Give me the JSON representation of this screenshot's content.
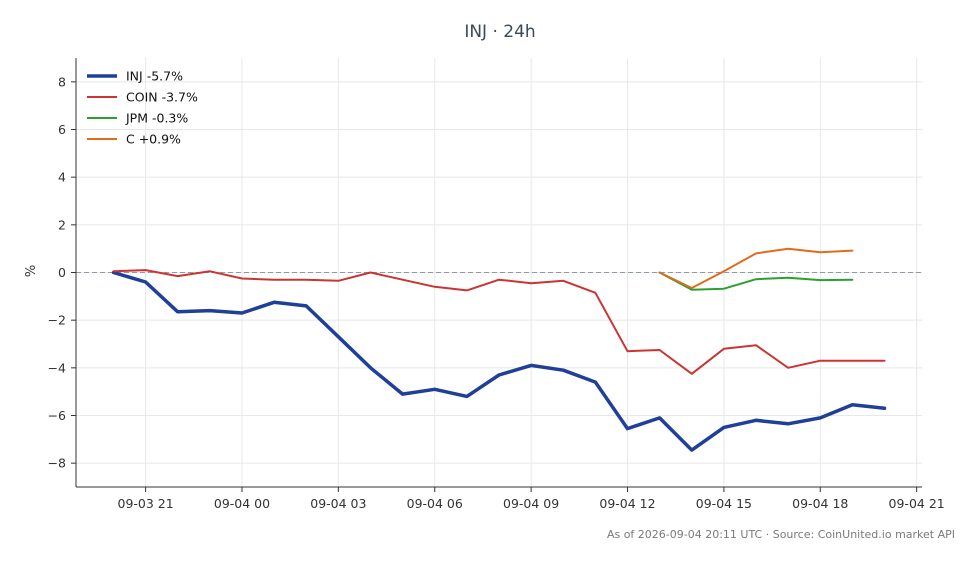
{
  "chart_data": {
    "type": "line",
    "title": "INJ · 24h",
    "xlabel": "",
    "ylabel": "%",
    "ylim": [
      -9,
      9
    ],
    "y_ticks": [
      -8,
      -6,
      -4,
      -2,
      0,
      2,
      4,
      6,
      8
    ],
    "y_tick_labels": [
      "−8",
      "−6",
      "−4",
      "−2",
      "0",
      "2",
      "4",
      "6",
      "8"
    ],
    "x_ticks": [
      "2026-09-03 21:00",
      "2026-09-04 00:00",
      "2026-09-04 03:00",
      "2026-09-04 06:00",
      "2026-09-04 09:00",
      "2026-09-04 12:00",
      "2026-09-04 15:00",
      "2026-09-04 18:00",
      "2026-09-04 21:00"
    ],
    "x_tick_labels": [
      "09-03 21",
      "09-04 00",
      "09-04 03",
      "09-04 06",
      "09-04 09",
      "09-04 12",
      "09-04 15",
      "09-04 18",
      "09-04 21"
    ],
    "xlim": [
      "2026-09-03 18:50",
      "2026-09-04 21:10"
    ],
    "grid": true,
    "zero_reference_line": true,
    "legend_position": "top-left",
    "series": [
      {
        "name": "INJ -5.7%",
        "color": "#1f3f99",
        "x": [
          "2026-09-03 20:00",
          "2026-09-03 21:00",
          "2026-09-03 22:00",
          "2026-09-03 23:00",
          "2026-09-04 00:00",
          "2026-09-04 01:00",
          "2026-09-04 02:00",
          "2026-09-04 03:00",
          "2026-09-04 04:00",
          "2026-09-04 05:00",
          "2026-09-04 06:00",
          "2026-09-04 07:00",
          "2026-09-04 08:00",
          "2026-09-04 09:00",
          "2026-09-04 10:00",
          "2026-09-04 11:00",
          "2026-09-04 12:00",
          "2026-09-04 13:00",
          "2026-09-04 14:00",
          "2026-09-04 15:00",
          "2026-09-04 16:00",
          "2026-09-04 17:00",
          "2026-09-04 18:00",
          "2026-09-04 19:00",
          "2026-09-04 20:00"
        ],
        "values": [
          0.0,
          -0.4,
          -1.65,
          -1.6,
          -1.7,
          -1.25,
          -1.4,
          -2.7,
          -4.0,
          -5.1,
          -4.9,
          -5.2,
          -4.3,
          -3.9,
          -4.1,
          -4.6,
          -6.55,
          -6.1,
          -7.45,
          -6.5,
          -6.2,
          -6.35,
          -6.1,
          -5.55,
          -5.7
        ]
      },
      {
        "name": "COIN -3.7%",
        "color": "#cc3333",
        "x": [
          "2026-09-03 20:00",
          "2026-09-03 21:00",
          "2026-09-03 22:00",
          "2026-09-03 23:00",
          "2026-09-04 00:00",
          "2026-09-04 01:00",
          "2026-09-04 02:00",
          "2026-09-04 03:00",
          "2026-09-04 04:00",
          "2026-09-04 05:00",
          "2026-09-04 06:00",
          "2026-09-04 07:00",
          "2026-09-04 08:00",
          "2026-09-04 09:00",
          "2026-09-04 10:00",
          "2026-09-04 11:00",
          "2026-09-04 12:00",
          "2026-09-04 13:00",
          "2026-09-04 14:00",
          "2026-09-04 15:00",
          "2026-09-04 16:00",
          "2026-09-04 17:00",
          "2026-09-04 18:00",
          "2026-09-04 19:00",
          "2026-09-04 20:00"
        ],
        "values": [
          0.05,
          0.1,
          -0.15,
          0.05,
          -0.25,
          -0.3,
          -0.3,
          -0.35,
          0.0,
          -0.3,
          -0.6,
          -0.75,
          -0.3,
          -0.45,
          -0.35,
          -0.85,
          -3.3,
          -3.25,
          -4.25,
          -3.2,
          -3.05,
          -4.0,
          -3.7,
          -3.7,
          -3.7
        ]
      },
      {
        "name": "JPM -0.3%",
        "color": "#2ca02c",
        "x": [
          "2026-09-04 13:00",
          "2026-09-04 14:00",
          "2026-09-04 15:00",
          "2026-09-04 16:00",
          "2026-09-04 17:00",
          "2026-09-04 18:00",
          "2026-09-04 19:00"
        ],
        "values": [
          0.0,
          -0.72,
          -0.68,
          -0.28,
          -0.22,
          -0.32,
          -0.3
        ]
      },
      {
        "name": "C +0.9%",
        "color": "#e06c1a",
        "x": [
          "2026-09-04 13:00",
          "2026-09-04 14:00",
          "2026-09-04 15:00",
          "2026-09-04 16:00",
          "2026-09-04 17:00",
          "2026-09-04 18:00",
          "2026-09-04 19:00"
        ],
        "values": [
          0.0,
          -0.65,
          0.05,
          0.8,
          1.0,
          0.85,
          0.92
        ]
      }
    ],
    "footer": "As of 2026-09-04 20:11 UTC · Source: CoinUnited.io market API"
  }
}
